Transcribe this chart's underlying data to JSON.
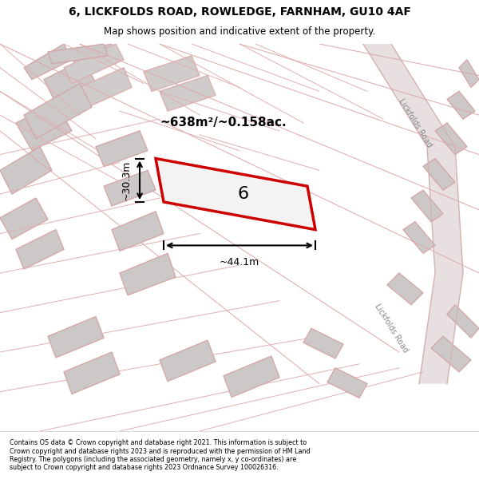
{
  "title_line1": "6, LICKFOLDS ROAD, ROWLEDGE, FARNHAM, GU10 4AF",
  "title_line2": "Map shows position and indicative extent of the property.",
  "area_text": "~638m²/~0.158ac.",
  "width_label": "~44.1m",
  "height_label": "~30.3m",
  "property_number": "6",
  "footer_text": "Contains OS data © Crown copyright and database right 2021. This information is subject to Crown copyright and database rights 2023 and is reproduced with the permission of HM Land Registry. The polygons (including the associated geometry, namely x, y co-ordinates) are subject to Crown copyright and database rights 2023 Ordnance Survey 100026316.",
  "bg_color": "#f5f0f0",
  "map_bg": "#f0eded",
  "road_color": "#e8c8c8",
  "building_color": "#d8d0d0",
  "highlight_color": "#cc0000",
  "road_stripe_color": "#d4d0d0",
  "title_area_bg": "#ffffff",
  "footer_bg": "#ffffff"
}
